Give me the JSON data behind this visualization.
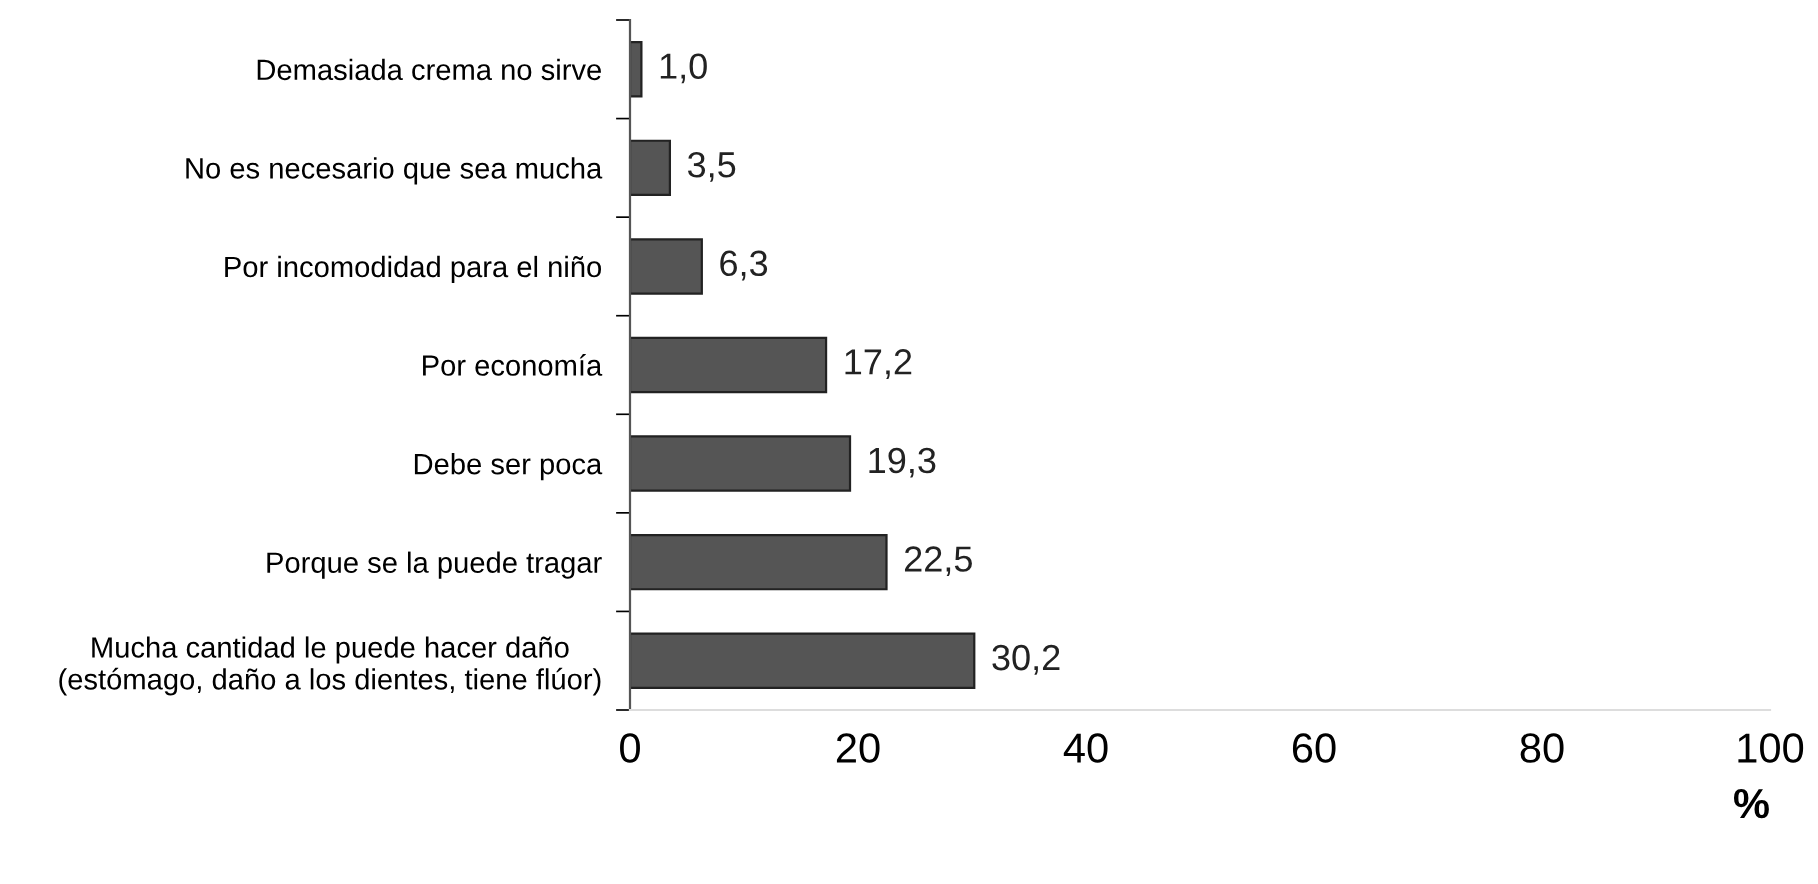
{
  "chart_data": {
    "type": "bar",
    "orientation": "horizontal",
    "xlabel": "%",
    "categories": [
      "Demasiada crema no sirve",
      "No es necesario que sea mucha",
      "Por incomodidad para el niño",
      "Por economía",
      "Debe ser poca",
      "Porque se la puede tragar",
      "Mucha cantidad le puede hacer daño\n(estómago, daño a los dientes, tiene flúor)"
    ],
    "values": [
      1.0,
      3.5,
      6.3,
      17.2,
      19.3,
      22.5,
      30.2
    ],
    "value_labels": [
      "1,0",
      "3,5",
      "6,3",
      "17,2",
      "19,3",
      "22,5",
      "30,2"
    ],
    "color": "#555555",
    "xlim": [
      0,
      100
    ],
    "xticks": [
      0,
      20,
      40,
      60,
      80,
      100
    ],
    "grid": false,
    "legend": false
  }
}
